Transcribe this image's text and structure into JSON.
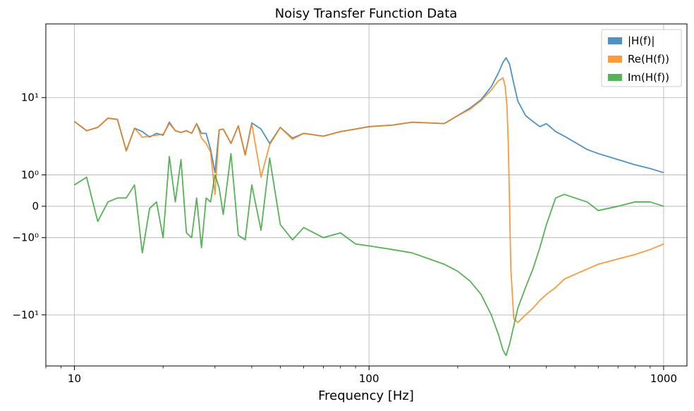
{
  "chart_data": {
    "type": "line",
    "title": "Noisy Transfer Function Data",
    "xlabel": "Frequency [Hz]",
    "ylabel": "",
    "xscale": "log",
    "yscale": "symlog",
    "xlim": [
      8,
      1200
    ],
    "ylim": [
      -33,
      55
    ],
    "grid": true,
    "legend_position": "top-right",
    "x_ticks": [
      {
        "value": 10,
        "label": "10"
      },
      {
        "value": 100,
        "label": "100"
      },
      {
        "value": 1000,
        "label": "1000"
      }
    ],
    "y_ticks": [
      {
        "value": 10,
        "label": "10¹"
      },
      {
        "value": 1,
        "label": "10⁰"
      },
      {
        "value": 0,
        "label": "0"
      },
      {
        "value": -1,
        "label": "−10⁰"
      },
      {
        "value": -10,
        "label": "−10¹"
      }
    ],
    "series": [
      {
        "name": "|H(f)|",
        "color": "#1f77b4",
        "x": [
          10,
          11,
          12,
          13,
          14,
          15,
          16,
          17,
          18,
          19,
          20,
          21,
          22,
          23,
          24,
          25,
          26,
          27,
          28,
          29,
          30,
          31,
          32,
          34,
          36,
          38,
          40,
          43,
          46,
          50,
          55,
          60,
          70,
          80,
          90,
          100,
          120,
          140,
          160,
          180,
          200,
          220,
          240,
          260,
          275,
          285,
          292,
          300,
          310,
          320,
          340,
          360,
          380,
          400,
          430,
          460,
          500,
          550,
          600,
          700,
          800,
          900,
          1000
        ],
        "values": [
          5.5,
          4.3,
          4.7,
          6,
          5.8,
          2.4,
          4.6,
          4.2,
          3.6,
          4,
          3.8,
          5.4,
          4.3,
          4.1,
          4.3,
          4,
          5.2,
          4,
          4,
          2.5,
          1.1,
          4.4,
          4.5,
          3,
          4.9,
          2.1,
          5.3,
          4.5,
          3,
          4.7,
          3.5,
          4,
          3.7,
          4.2,
          4.5,
          4.8,
          5,
          5.4,
          5.3,
          5.2,
          6.4,
          7.7,
          9.5,
          13,
          18,
          23,
          25.5,
          22,
          14,
          9.2,
          6.4,
          5.5,
          4.8,
          5.2,
          4.2,
          3.7,
          3.1,
          2.5,
          2.2,
          1.8,
          1.5,
          1.3,
          1.1
        ]
      },
      {
        "name": "Re(H(f))",
        "color": "#ff7f0e",
        "x": [
          10,
          11,
          12,
          13,
          14,
          15,
          16,
          17,
          18,
          19,
          20,
          21,
          22,
          23,
          24,
          25,
          26,
          27,
          28,
          29,
          30,
          31,
          32,
          34,
          36,
          38,
          40,
          43,
          46,
          50,
          55,
          60,
          70,
          80,
          90,
          100,
          120,
          140,
          160,
          180,
          200,
          220,
          240,
          260,
          275,
          285,
          290,
          294,
          297,
          300,
          303,
          310,
          320,
          340,
          360,
          380,
          400,
          430,
          460,
          500,
          550,
          600,
          700,
          800,
          900,
          1000
        ],
        "values": [
          5.5,
          4.3,
          4.7,
          6,
          5.8,
          2.4,
          4.6,
          3.6,
          3.7,
          3.8,
          3.9,
          5.2,
          4.3,
          4.1,
          4.3,
          4,
          5.2,
          3.5,
          3,
          2.3,
          0.3,
          4.4,
          4.5,
          3,
          4.9,
          2.1,
          5.2,
          0.9,
          2.9,
          4.7,
          3.4,
          4,
          3.7,
          4.2,
          4.5,
          4.8,
          5,
          5.4,
          5.3,
          5.2,
          6.4,
          7.5,
          9.3,
          12,
          15,
          16,
          13,
          8,
          3,
          0,
          -3,
          -11,
          -12,
          -10,
          -8.5,
          -7,
          -6,
          -5,
          -4,
          -3.5,
          -3,
          -2.6,
          -2.2,
          -1.9,
          -1.6,
          -1.3
        ]
      },
      {
        "name": "Im(H(f))",
        "color": "#2ca02c",
        "x": [
          10,
          11,
          12,
          13,
          14,
          15,
          16,
          17,
          18,
          19,
          20,
          21,
          22,
          23,
          24,
          25,
          26,
          27,
          28,
          29,
          30,
          31,
          32,
          34,
          36,
          38,
          40,
          43,
          46,
          50,
          55,
          60,
          70,
          80,
          90,
          100,
          120,
          140,
          160,
          180,
          200,
          220,
          240,
          260,
          275,
          285,
          292,
          300,
          310,
          320,
          340,
          360,
          380,
          400,
          430,
          460,
          500,
          550,
          600,
          700,
          800,
          900,
          1000
        ],
        "values": [
          0.6,
          0.9,
          -0.4,
          0.1,
          0.2,
          0.2,
          0.6,
          -1.8,
          -0.05,
          0.1,
          -1,
          2,
          0.1,
          1.8,
          -0.8,
          -1,
          0.2,
          -1.5,
          0.2,
          0.1,
          1,
          0.5,
          -0.2,
          2.2,
          -0.9,
          -1.1,
          0.6,
          -0.7,
          1.9,
          -0.5,
          -1.1,
          -0.6,
          -1,
          -0.8,
          -1.3,
          -1.4,
          -1.6,
          -1.8,
          -2.2,
          -2.6,
          -3.2,
          -4.2,
          -6,
          -10,
          -16,
          -23,
          -26,
          -20,
          -13,
          -8.5,
          -5,
          -3,
          -1.5,
          -0.5,
          0.2,
          0.3,
          0.2,
          0.1,
          -0.1,
          0,
          0.1,
          0.1,
          0
        ]
      }
    ]
  }
}
